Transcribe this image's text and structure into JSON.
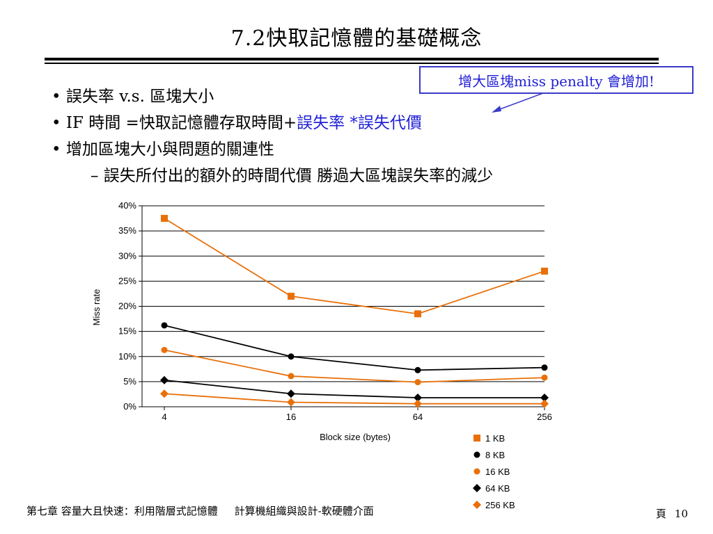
{
  "slide": {
    "title": "7.2快取記憶體的基礎概念",
    "callout": "增大區塊miss penalty 會增加!",
    "bullets": [
      {
        "prefix": "• ",
        "text": "誤失率 v.s. 區塊大小",
        "highlight": ""
      },
      {
        "prefix": "• ",
        "text": "IF 時間 =快取記憶體存取時間+",
        "highlight": "誤失率 *誤失代價"
      },
      {
        "prefix": "• ",
        "text": "增加區塊大小與問題的關連性",
        "highlight": ""
      }
    ],
    "sub_bullet": "– 誤失所付出的額外的時間代價 勝過大區塊誤失率的減少",
    "footer": {
      "chapter": "第七章 容量大且快速：利用階層式記憶體",
      "course": "計算機組織與設計-軟硬體介面",
      "page_label": "頁",
      "page_number": "10"
    },
    "colors": {
      "accent_blue": "#1f1fd6",
      "orange": "#e8700a",
      "black": "#000000"
    }
  },
  "chart_data": {
    "type": "line",
    "xlabel": "Block size (bytes)",
    "ylabel": "Miss rate",
    "categories": [
      "4",
      "16",
      "64",
      "256"
    ],
    "ylim": [
      0,
      40
    ],
    "yticks": [
      "0%",
      "5%",
      "10%",
      "15%",
      "20%",
      "25%",
      "30%",
      "35%",
      "40%"
    ],
    "grid": "horizontal",
    "legend_position": "bottom-right",
    "series": [
      {
        "name": "1 KB",
        "values": [
          37.5,
          22.0,
          18.5,
          27.0
        ],
        "color": "#e8700a",
        "marker": "square"
      },
      {
        "name": "8 KB",
        "values": [
          16.2,
          10.0,
          7.3,
          7.8
        ],
        "color": "#000000",
        "marker": "circle"
      },
      {
        "name": "16 KB",
        "values": [
          11.3,
          6.1,
          4.9,
          5.8
        ],
        "color": "#e8700a",
        "marker": "circle"
      },
      {
        "name": "64 KB",
        "values": [
          5.3,
          2.6,
          1.8,
          1.8
        ],
        "color": "#000000",
        "marker": "diamond"
      },
      {
        "name": "256 KB",
        "values": [
          2.6,
          0.9,
          0.6,
          0.6
        ],
        "color": "#e8700a",
        "marker": "diamond"
      }
    ]
  }
}
